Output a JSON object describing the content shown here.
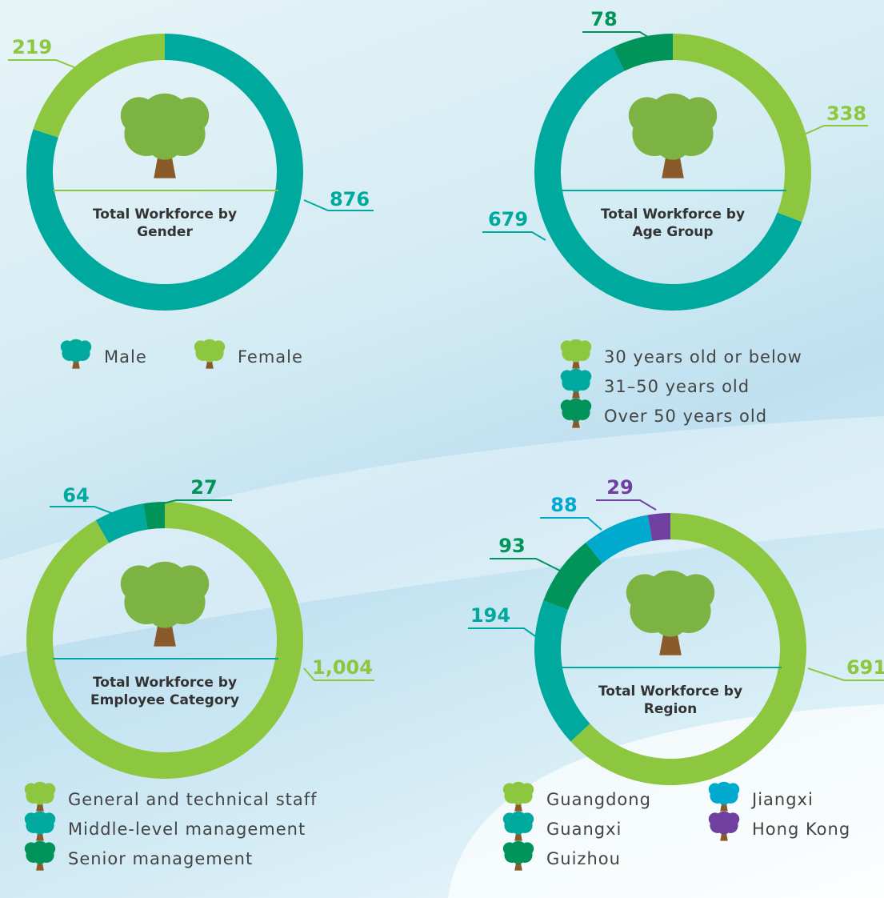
{
  "chart_data": [
    {
      "type": "donut",
      "title": "Total Workforce by Gender",
      "categories": [
        "Male",
        "Female"
      ],
      "values": [
        876,
        219
      ],
      "colors": [
        "#00a99d",
        "#8dc63f"
      ]
    },
    {
      "type": "donut",
      "title": "Total Workforce by Age Group",
      "categories": [
        "30 years old or below",
        "31–50 years old",
        "Over 50 years old"
      ],
      "values": [
        338,
        679,
        78
      ],
      "colors": [
        "#8dc63f",
        "#00a99d",
        "#00945a"
      ]
    },
    {
      "type": "donut",
      "title": "Total Workforce by Employee Category",
      "categories": [
        "General and technical staff",
        "Middle-level management",
        "Senior management"
      ],
      "values": [
        1004,
        64,
        27
      ],
      "value_labels": [
        "1,004",
        "64",
        "27"
      ],
      "colors": [
        "#8dc63f",
        "#00a99d",
        "#00945a"
      ]
    },
    {
      "type": "donut",
      "title": "Total Workforce by Region",
      "categories": [
        "Guangdong",
        "Guangxi",
        "Guizhou",
        "Jiangxi",
        "Hong Kong"
      ],
      "values": [
        691,
        194,
        93,
        88,
        29
      ],
      "colors": [
        "#8dc63f",
        "#00a99d",
        "#00945a",
        "#00a9ce",
        "#7040a0"
      ]
    }
  ]
}
